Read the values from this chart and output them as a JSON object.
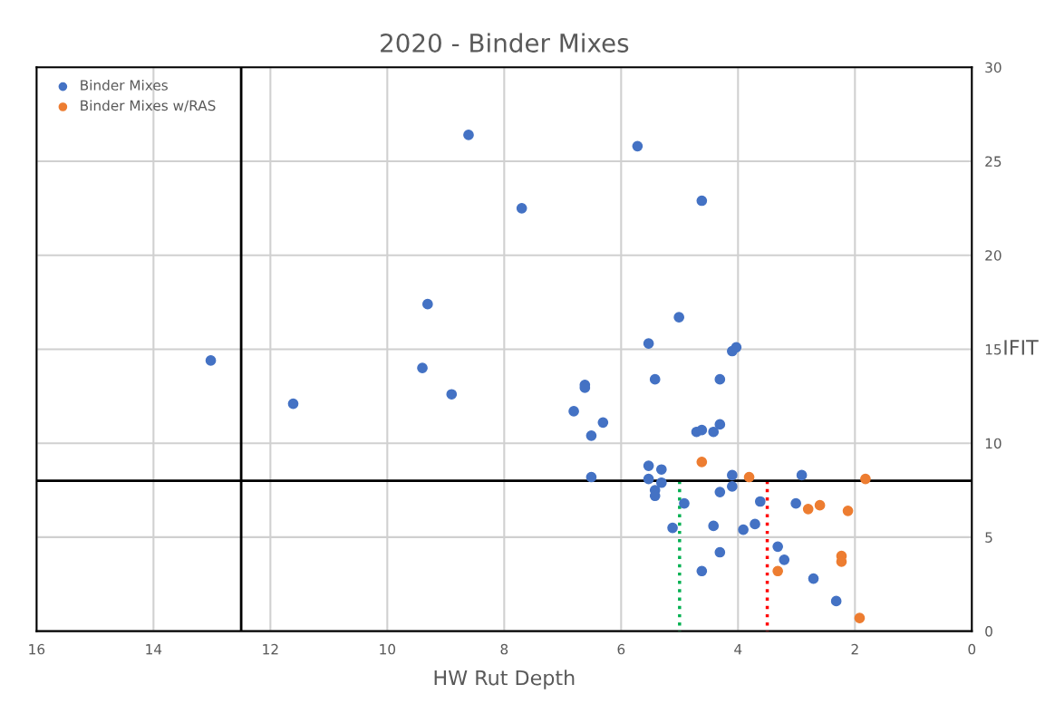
{
  "chart_data": {
    "type": "scatter",
    "title": "2020 - Binder Mixes",
    "xlabel": "HW Rut Depth",
    "ylabel": "IFIT",
    "xlim": [
      16,
      0
    ],
    "xticks": [
      16,
      14,
      12,
      10,
      8,
      6,
      4,
      2,
      0
    ],
    "ylim": [
      0,
      30
    ],
    "yticks": [
      0,
      5,
      10,
      15,
      20,
      25,
      30
    ],
    "grid": true,
    "legend": "top left",
    "series": [
      {
        "name": "Binder Mixes",
        "color": "#4472c4",
        "marker": "circle",
        "x": [
          8.61,
          5.72,
          7.7,
          4.62,
          9.31,
          5.01,
          5.53,
          4.1,
          4.03,
          13.02,
          9.4,
          5.42,
          4.31,
          6.62,
          6.62,
          11.61,
          8.9,
          6.81,
          6.31,
          4.31,
          4.71,
          4.62,
          4.42,
          6.51,
          5.53,
          5.31,
          6.51,
          5.53,
          5.31,
          4.1,
          2.91,
          5.42,
          5.42,
          4.31,
          4.1,
          3.62,
          4.92,
          3.01,
          5.12,
          4.42,
          3.91,
          3.71,
          3.32,
          3.21,
          4.31,
          4.62,
          2.71,
          2.32
        ],
        "values": [
          26.4,
          25.8,
          22.5,
          22.9,
          17.4,
          16.7,
          15.3,
          14.9,
          15.1,
          14.4,
          14.0,
          13.4,
          13.4,
          13.1,
          12.95,
          12.1,
          12.6,
          11.7,
          11.1,
          11.0,
          10.6,
          10.7,
          10.6,
          10.4,
          8.8,
          8.6,
          8.2,
          8.1,
          7.9,
          8.3,
          8.3,
          7.5,
          7.2,
          7.4,
          7.7,
          6.9,
          6.8,
          6.8,
          5.5,
          5.6,
          5.4,
          5.7,
          4.5,
          3.8,
          4.2,
          3.2,
          2.8,
          1.6
        ]
      },
      {
        "name": "Binder Mixes w/RAS",
        "color": "#ed7d31",
        "marker": "circle",
        "x": [
          4.62,
          3.81,
          1.82,
          2.8,
          2.6,
          2.12,
          2.23,
          2.23,
          3.32,
          1.92
        ],
        "values": [
          9.0,
          8.2,
          8.1,
          6.5,
          6.7,
          6.4,
          4.0,
          3.7,
          3.2,
          0.7
        ]
      },
      {
        "type": "line",
        "color": "#00b050",
        "line_style": "dotted",
        "marker": "none",
        "x": [
          5,
          5
        ],
        "values": [
          8,
          0
        ]
      },
      {
        "type": "line",
        "color": "#ff0000",
        "line_style": "dotted",
        "marker": "none",
        "x": [
          3.5,
          3.5
        ],
        "values": [
          8,
          0
        ]
      }
    ],
    "ref_lines": [
      {
        "axis": "x",
        "value": 12.5,
        "color": "#000000"
      },
      {
        "axis": "y",
        "value": 8,
        "color": "#000000"
      }
    ]
  }
}
